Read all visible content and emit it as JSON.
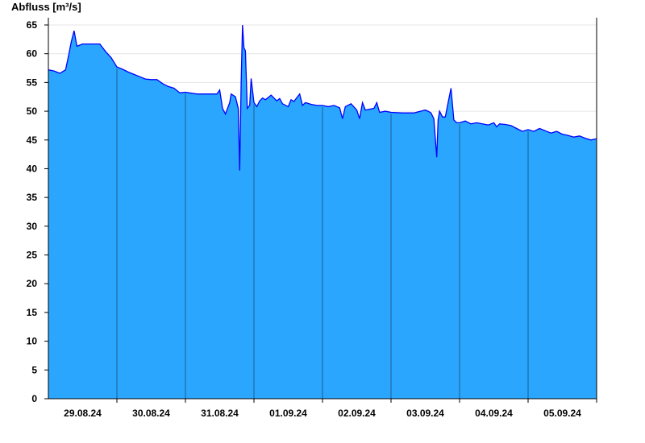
{
  "chart_data": {
    "type": "area",
    "ylabel": "Abfluss [m³/s]",
    "xlabel": "",
    "ylim": [
      0,
      65
    ],
    "yticks": [
      0,
      5,
      10,
      15,
      20,
      25,
      30,
      35,
      40,
      45,
      50,
      55,
      60,
      65
    ],
    "xlim": [
      "2024-08-29T00:00",
      "2024-09-06T00:00"
    ],
    "xtick_labels": [
      "29.08.24",
      "30.08.24",
      "31.08.24",
      "01.09.24",
      "02.09.24",
      "03.09.24",
      "04.09.24",
      "05.09.24"
    ],
    "grid": "horizontal",
    "fill_color": "#2aa6ff",
    "line_color": "#0000ff",
    "series": [
      {
        "points": [
          [
            "2024-08-29T00:00",
            57.2
          ],
          [
            "2024-08-29T02:00",
            57.0
          ],
          [
            "2024-08-29T04:00",
            56.6
          ],
          [
            "2024-08-29T06:00",
            57.2
          ],
          [
            "2024-08-29T07:00",
            59.5
          ],
          [
            "2024-08-29T08:00",
            62.0
          ],
          [
            "2024-08-29T09:00",
            64.0
          ],
          [
            "2024-08-29T10:00",
            61.3
          ],
          [
            "2024-08-29T12:00",
            61.7
          ],
          [
            "2024-08-29T14:00",
            61.7
          ],
          [
            "2024-08-29T16:00",
            61.7
          ],
          [
            "2024-08-29T18:00",
            61.7
          ],
          [
            "2024-08-29T20:00",
            60.4
          ],
          [
            "2024-08-29T22:00",
            59.3
          ],
          [
            "2024-08-30T00:00",
            57.7
          ],
          [
            "2024-08-30T02:00",
            57.3
          ],
          [
            "2024-08-30T04:00",
            56.8
          ],
          [
            "2024-08-30T06:00",
            56.4
          ],
          [
            "2024-08-30T08:00",
            56.0
          ],
          [
            "2024-08-30T10:00",
            55.6
          ],
          [
            "2024-08-30T12:00",
            55.5
          ],
          [
            "2024-08-30T14:00",
            55.5
          ],
          [
            "2024-08-30T16:00",
            54.8
          ],
          [
            "2024-08-30T18:00",
            54.3
          ],
          [
            "2024-08-30T20:00",
            54.0
          ],
          [
            "2024-08-30T22:00",
            53.2
          ],
          [
            "2024-08-31T00:00",
            53.3
          ],
          [
            "2024-08-31T04:00",
            53.0
          ],
          [
            "2024-08-31T08:00",
            53.0
          ],
          [
            "2024-08-31T11:00",
            53.0
          ],
          [
            "2024-08-31T12:00",
            53.7
          ],
          [
            "2024-08-31T13:00",
            50.5
          ],
          [
            "2024-08-31T14:00",
            49.5
          ],
          [
            "2024-08-31T15:30",
            51.5
          ],
          [
            "2024-08-31T16:00",
            53.0
          ],
          [
            "2024-08-31T17:30",
            52.5
          ],
          [
            "2024-08-31T18:30",
            50.5
          ],
          [
            "2024-08-31T19:00",
            39.7
          ],
          [
            "2024-08-31T19:30",
            55.0
          ],
          [
            "2024-08-31T20:00",
            65.0
          ],
          [
            "2024-08-31T20:30",
            61.0
          ],
          [
            "2024-08-31T21:00",
            60.5
          ],
          [
            "2024-08-31T21:40",
            50.5
          ],
          [
            "2024-08-31T22:30",
            51.0
          ],
          [
            "2024-08-31T23:00",
            55.7
          ],
          [
            "2024-09-01T00:00",
            51.5
          ],
          [
            "2024-09-01T01:00",
            50.8
          ],
          [
            "2024-09-01T02:00",
            51.8
          ],
          [
            "2024-09-01T03:00",
            52.3
          ],
          [
            "2024-09-01T04:00",
            52.0
          ],
          [
            "2024-09-01T06:00",
            52.8
          ],
          [
            "2024-09-01T07:00",
            52.3
          ],
          [
            "2024-09-01T08:00",
            51.8
          ],
          [
            "2024-09-01T09:00",
            52.2
          ],
          [
            "2024-09-01T10:00",
            51.3
          ],
          [
            "2024-09-01T12:00",
            50.8
          ],
          [
            "2024-09-01T13:00",
            52.0
          ],
          [
            "2024-09-01T14:00",
            51.7
          ],
          [
            "2024-09-01T16:00",
            53.0
          ],
          [
            "2024-09-01T17:00",
            51.0
          ],
          [
            "2024-09-01T18:00",
            51.5
          ],
          [
            "2024-09-01T20:00",
            51.2
          ],
          [
            "2024-09-01T22:00",
            51.0
          ],
          [
            "2024-09-02T00:00",
            51.0
          ],
          [
            "2024-09-02T02:00",
            50.8
          ],
          [
            "2024-09-02T04:00",
            51.0
          ],
          [
            "2024-09-02T06:00",
            50.6
          ],
          [
            "2024-09-02T07:00",
            48.7
          ],
          [
            "2024-09-02T08:00",
            50.8
          ],
          [
            "2024-09-02T10:00",
            51.3
          ],
          [
            "2024-09-02T12:00",
            50.2
          ],
          [
            "2024-09-02T13:00",
            48.7
          ],
          [
            "2024-09-02T14:00",
            51.5
          ],
          [
            "2024-09-02T15:00",
            50.2
          ],
          [
            "2024-09-02T18:00",
            50.5
          ],
          [
            "2024-09-02T19:00",
            51.5
          ],
          [
            "2024-09-02T20:00",
            49.8
          ],
          [
            "2024-09-02T22:00",
            50.0
          ],
          [
            "2024-09-03T00:00",
            49.8
          ],
          [
            "2024-09-03T04:00",
            49.7
          ],
          [
            "2024-09-03T08:00",
            49.7
          ],
          [
            "2024-09-03T12:00",
            50.2
          ],
          [
            "2024-09-03T13:00",
            50.0
          ],
          [
            "2024-09-03T14:00",
            49.7
          ],
          [
            "2024-09-03T15:00",
            48.7
          ],
          [
            "2024-09-03T16:00",
            42.0
          ],
          [
            "2024-09-03T16:30",
            48.5
          ],
          [
            "2024-09-03T17:00",
            50.0
          ],
          [
            "2024-09-03T18:00",
            49.0
          ],
          [
            "2024-09-03T19:00",
            49.0
          ],
          [
            "2024-09-03T20:00",
            51.5
          ],
          [
            "2024-09-03T21:00",
            54.0
          ],
          [
            "2024-09-03T22:00",
            48.5
          ],
          [
            "2024-09-03T23:00",
            48.0
          ],
          [
            "2024-09-04T00:00",
            48.0
          ],
          [
            "2024-09-04T02:00",
            48.3
          ],
          [
            "2024-09-04T04:00",
            47.8
          ],
          [
            "2024-09-04T06:00",
            48.0
          ],
          [
            "2024-09-04T08:00",
            47.8
          ],
          [
            "2024-09-04T10:00",
            47.6
          ],
          [
            "2024-09-04T12:00",
            48.0
          ],
          [
            "2024-09-04T13:00",
            47.3
          ],
          [
            "2024-09-04T14:00",
            47.8
          ],
          [
            "2024-09-04T16:00",
            47.7
          ],
          [
            "2024-09-04T18:00",
            47.5
          ],
          [
            "2024-09-04T20:00",
            47.0
          ],
          [
            "2024-09-04T22:00",
            46.5
          ],
          [
            "2024-09-05T00:00",
            46.8
          ],
          [
            "2024-09-05T02:00",
            46.5
          ],
          [
            "2024-09-05T04:00",
            47.0
          ],
          [
            "2024-09-05T06:00",
            46.6
          ],
          [
            "2024-09-05T08:00",
            46.2
          ],
          [
            "2024-09-05T10:00",
            46.5
          ],
          [
            "2024-09-05T12:00",
            46.0
          ],
          [
            "2024-09-05T14:00",
            45.8
          ],
          [
            "2024-09-05T16:00",
            45.5
          ],
          [
            "2024-09-05T18:00",
            45.7
          ],
          [
            "2024-09-05T20:00",
            45.3
          ],
          [
            "2024-09-05T22:00",
            45.0
          ],
          [
            "2024-09-06T00:00",
            45.2
          ]
        ]
      }
    ]
  }
}
